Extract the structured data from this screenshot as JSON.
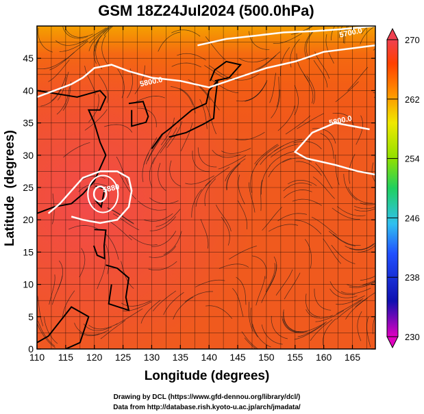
{
  "chart_data": {
    "type": "heatmap",
    "title": "GSM 18Z24Jul2024 (500.0hPa)",
    "xlabel": "Longitude (degrees)",
    "ylabel": "Latitude  (degrees)",
    "xlim": [
      110,
      169
    ],
    "ylim": [
      0,
      50
    ],
    "x_ticks": [
      "110",
      "115",
      "120",
      "125",
      "130",
      "135",
      "140",
      "145",
      "150",
      "155",
      "160",
      "165"
    ],
    "y_ticks": [
      "0",
      "5",
      "10",
      "15",
      "20",
      "25",
      "30",
      "35",
      "40",
      "45"
    ],
    "grid": true,
    "colorbar": {
      "position": "right",
      "min": 230,
      "max": 270,
      "ticks": [
        "270",
        "262",
        "254",
        "246",
        "238",
        "230"
      ],
      "colors": [
        "#e000c0",
        "#1010b0",
        "#2050ff",
        "#30c0f0",
        "#20d060",
        "#90e000",
        "#f0e800",
        "#ff9000",
        "#ff4000",
        "#f04050"
      ]
    },
    "contours": [
      {
        "label": "5700.0",
        "lon": 164.8,
        "lat": 48.6
      },
      {
        "label": "5800.0",
        "lon": 130.0,
        "lat": 41.0
      },
      {
        "label": "5800.0",
        "lon": 163.0,
        "lat": 35.0
      },
      {
        "label": "5880",
        "lon": 123.0,
        "lat": 24.5
      }
    ],
    "typhoon_center": {
      "lon": 121.0,
      "lat": 24.0
    }
  },
  "credits": {
    "line1": "Drawing by DCL (https://www.gfd-dennou.org/library/dcl/)",
    "line2": "Data from http://database.rish.kyoto-u.ac.jp/arch/jmadata/"
  }
}
